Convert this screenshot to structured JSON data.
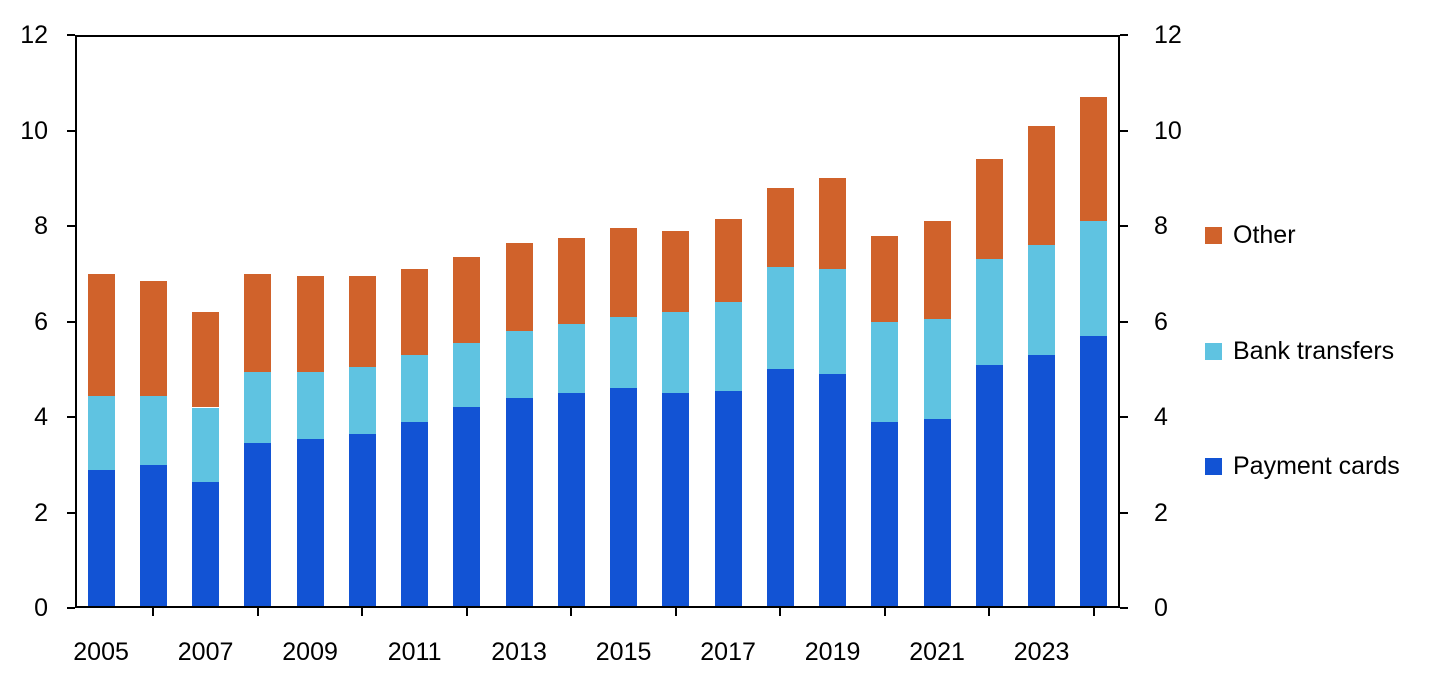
{
  "chart_data": {
    "type": "bar",
    "stacked": true,
    "categories": [
      "2005",
      "2006",
      "2007",
      "2008",
      "2009",
      "2010",
      "2011",
      "2012",
      "2013",
      "2014",
      "2015",
      "2016",
      "2017",
      "2018",
      "2019",
      "2020",
      "2021",
      "2022",
      "2023",
      "2024"
    ],
    "x_tick_labels": [
      "2005",
      "2007",
      "2009",
      "2011",
      "2013",
      "2015",
      "2017",
      "2019",
      "2021",
      "2023"
    ],
    "series": [
      {
        "name": "Payment cards",
        "color": "#1253d4",
        "values": [
          2.9,
          3.0,
          2.65,
          3.45,
          3.55,
          3.65,
          3.9,
          4.2,
          4.4,
          4.5,
          4.6,
          4.5,
          4.55,
          5.0,
          4.9,
          3.9,
          3.95,
          5.1,
          5.3,
          5.7
        ]
      },
      {
        "name": "Bank transfers",
        "color": "#5fc3e1",
        "values": [
          1.55,
          1.45,
          1.55,
          1.5,
          1.4,
          1.4,
          1.4,
          1.35,
          1.4,
          1.45,
          1.5,
          1.7,
          1.85,
          2.15,
          2.2,
          2.1,
          2.1,
          2.2,
          2.3,
          2.4
        ]
      },
      {
        "name": "Other",
        "color": "#d0622b",
        "values": [
          2.55,
          2.4,
          2.0,
          2.05,
          2.0,
          1.9,
          1.8,
          1.8,
          1.85,
          1.8,
          1.85,
          1.7,
          1.75,
          1.65,
          1.9,
          1.8,
          2.05,
          2.1,
          2.5,
          2.6
        ]
      }
    ],
    "ylim": [
      0,
      12
    ],
    "yticks": [
      0,
      2,
      4,
      6,
      8,
      10,
      12
    ],
    "y_axis_sides": [
      "left",
      "right"
    ],
    "grid": false,
    "axis_color": "#000000",
    "legend": {
      "position": "right",
      "entries": [
        {
          "label": "Other",
          "color": "#d0622b"
        },
        {
          "label": "Bank transfers",
          "color": "#5fc3e1"
        },
        {
          "label": "Payment cards",
          "color": "#1253d4"
        }
      ]
    }
  }
}
